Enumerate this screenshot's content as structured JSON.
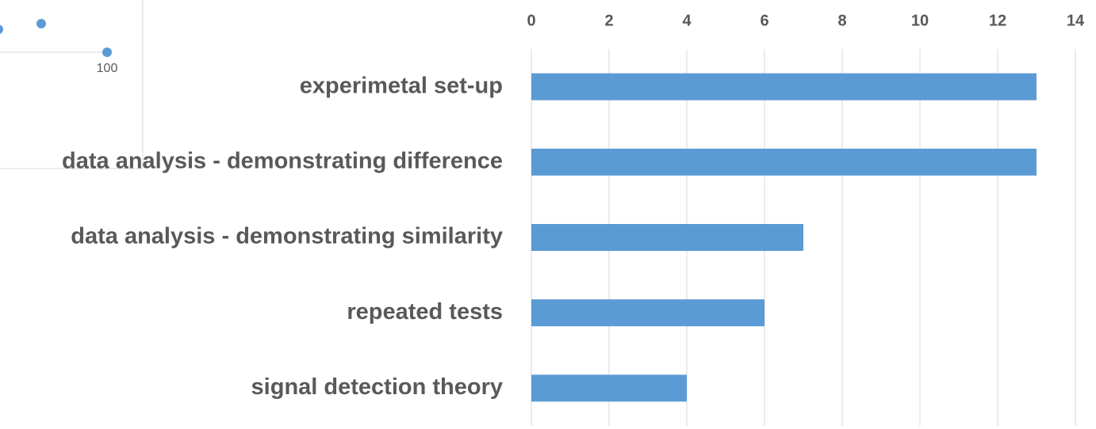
{
  "chart_data": [
    {
      "type": "scatter",
      "x": [
        67,
        80,
        100
      ],
      "values": [
        0.8,
        1.0,
        0
      ],
      "color": "#5b9bd5",
      "xlim": [
        67,
        100
      ],
      "xticks": [
        100
      ],
      "ylim": [
        0,
        1.8
      ]
    },
    {
      "type": "bar",
      "orientation": "horizontal",
      "categories": [
        "experimetal set-up",
        "data analysis - demonstrating difference",
        "data analysis - demonstrating similarity",
        "repeated tests",
        "signal detection theory"
      ],
      "values": [
        13,
        13,
        7,
        6,
        4
      ],
      "color": "#5b9bd5",
      "xlim": [
        0,
        14
      ],
      "xticks": [
        0,
        2,
        4,
        6,
        8,
        10,
        12,
        14
      ],
      "grid": true
    }
  ]
}
